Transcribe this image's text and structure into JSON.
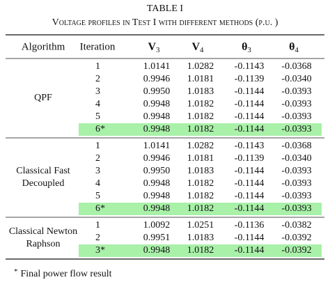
{
  "table": {
    "label": "TABLE I",
    "caption": "Voltage profiles in Test I with different methods (p.u. )",
    "highlight_color": "#a9f0a9",
    "header": [
      {
        "text": "Algorithm"
      },
      {
        "text": "Iteration"
      },
      {
        "symbol": "V",
        "sub": "3"
      },
      {
        "symbol": "V",
        "sub": "4"
      },
      {
        "symbol": "θ",
        "sub": "3"
      },
      {
        "symbol": "θ",
        "sub": "4"
      }
    ],
    "groups": [
      {
        "algorithm": [
          "QPF"
        ],
        "rows": [
          [
            "1",
            "1.0141",
            "1.0282",
            "-0.1143",
            "-0.0368"
          ],
          [
            "2",
            "0.9946",
            "1.0181",
            "-0.1139",
            "-0.0340"
          ],
          [
            "3",
            "0.9950",
            "1.0183",
            "-0.1144",
            "-0.0393"
          ],
          [
            "4",
            "0.9948",
            "1.0182",
            "-0.1144",
            "-0.0393"
          ],
          [
            "5",
            "0.9948",
            "1.0182",
            "-0.1144",
            "-0.0393"
          ],
          [
            "6*",
            "0.9948",
            "1.0182",
            "-0.1144",
            "-0.0393"
          ]
        ]
      },
      {
        "algorithm": [
          "Classical Fast",
          "Decoupled"
        ],
        "rows": [
          [
            "1",
            "1.0141",
            "1.0282",
            "-0.1143",
            "-0.0368"
          ],
          [
            "2",
            "0.9946",
            "1.0181",
            "-0.1139",
            "-0.0340"
          ],
          [
            "3",
            "0.9950",
            "1.0183",
            "-0.1144",
            "-0.0393"
          ],
          [
            "4",
            "0.9948",
            "1.0182",
            "-0.1144",
            "-0.0393"
          ],
          [
            "5",
            "0.9948",
            "1.0182",
            "-0.1144",
            "-0.0393"
          ],
          [
            "6*",
            "0.9948",
            "1.0182",
            "-0.1144",
            "-0.0393"
          ]
        ]
      },
      {
        "algorithm": [
          "Classical Newton",
          "Raphson"
        ],
        "rows": [
          [
            "1",
            "1.0092",
            "1.0251",
            "-0.1136",
            "-0.0382"
          ],
          [
            "2",
            "0.9951",
            "1.0183",
            "-0.1144",
            "-0.0392"
          ],
          [
            "3*",
            "0.9948",
            "1.0182",
            "-0.1144",
            "-0.0392"
          ]
        ]
      }
    ],
    "footnote": {
      "marker": "*",
      "text": "Final power flow result"
    }
  }
}
